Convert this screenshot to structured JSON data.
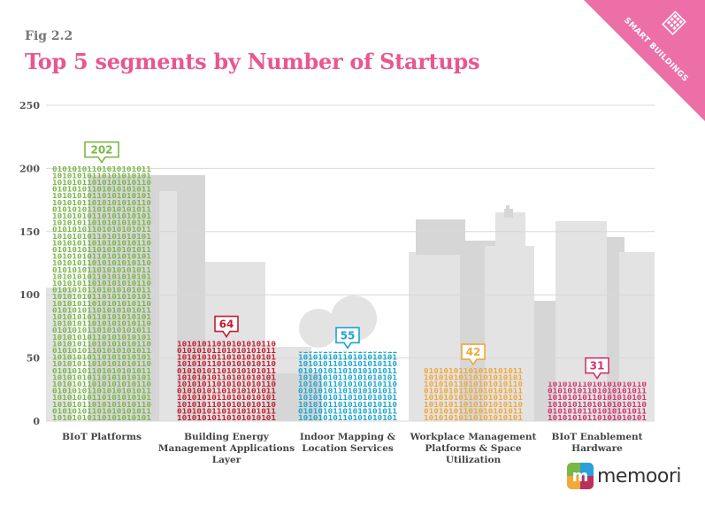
{
  "header": {
    "fig_label": "Fig 2.2",
    "title": "Top 5 segments by Number of Startups"
  },
  "corner_badge": {
    "text": "SMART BUILDINGS",
    "color": "#ec6fa8",
    "icon": "building-icon"
  },
  "logo": {
    "text": "memoori",
    "icon": "memoori-logo-icon"
  },
  "chart_data": {
    "type": "bar",
    "ylim": [
      0,
      250
    ],
    "yticks": [
      0,
      50,
      100,
      150,
      200,
      250
    ],
    "grid": true,
    "categories": [
      "BIoT Platforms",
      "Building Energy Management Applications Layer",
      "Indoor Mapping & Location Services",
      "Workplace Management Platforms & Space Utilization",
      "BIoT Enablement Hardware"
    ],
    "category_lines": [
      [
        "BIoT Platforms"
      ],
      [
        "Building Energy",
        "Management Applications",
        "Layer"
      ],
      [
        "Indoor Mapping &",
        "Location Services"
      ],
      [
        "Workplace Management",
        "Platforms & Space",
        "Utilization"
      ],
      [
        "BIoT Enablement",
        "Hardware"
      ]
    ],
    "values": [
      202,
      64,
      55,
      42,
      31
    ],
    "value_labels": [
      "202",
      "64",
      "55",
      "42",
      "31"
    ],
    "colors": [
      "#7ab648",
      "#c21e2f",
      "#1aa5cf",
      "#f0a83a",
      "#d2326e"
    ],
    "bar_pattern": "10101010110101010101"
  }
}
